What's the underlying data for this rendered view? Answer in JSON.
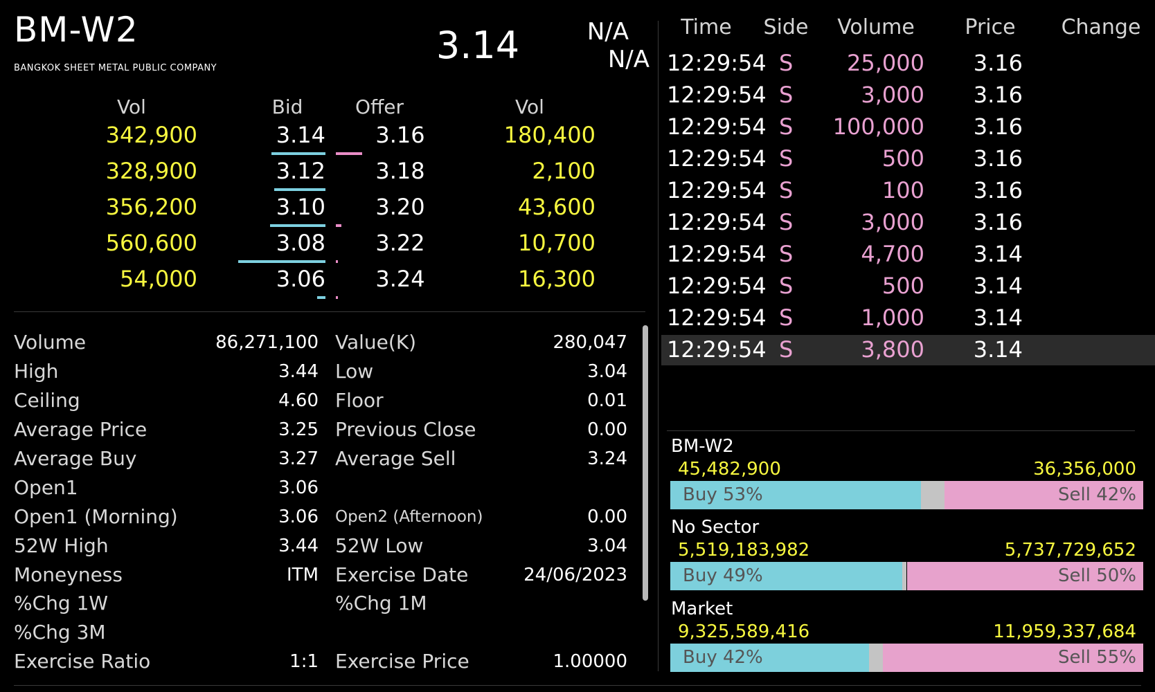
{
  "header": {
    "symbol": "BM-W2",
    "company": "BANGKOK SHEET METAL PUBLIC COMPANY",
    "last_price": "3.14",
    "change": "N/A",
    "percent_change": "N/A"
  },
  "order_book": {
    "headers": {
      "bid_vol": "Vol",
      "bid": "Bid",
      "offer": "Offer",
      "offer_vol": "Vol"
    },
    "rows": [
      {
        "bid_vol": "342,900",
        "bid": "3.14",
        "offer": "3.16",
        "offer_vol": "180,400"
      },
      {
        "bid_vol": "328,900",
        "bid": "3.12",
        "offer": "3.18",
        "offer_vol": "2,100"
      },
      {
        "bid_vol": "356,200",
        "bid": "3.10",
        "offer": "3.20",
        "offer_vol": "43,600"
      },
      {
        "bid_vol": "560,600",
        "bid": "3.08",
        "offer": "3.22",
        "offer_vol": "10,700"
      },
      {
        "bid_vol": "54,000",
        "bid": "3.06",
        "offer": "3.24",
        "offer_vol": "16,300"
      }
    ]
  },
  "stats": {
    "rows": [
      {
        "l1": "Volume",
        "v1": "86,271,100",
        "l2": "Value(K)",
        "v2": "280,047"
      },
      {
        "l1": "High",
        "v1": "3.44",
        "l2": "Low",
        "v2": "3.04"
      },
      {
        "l1": "Ceiling",
        "v1": "4.60",
        "l2": "Floor",
        "v2": "0.01"
      },
      {
        "l1": "Average Price",
        "v1": "3.25",
        "l2": "Previous Close",
        "v2": "0.00"
      },
      {
        "l1": "Average Buy",
        "v1": "3.27",
        "l2": "Average Sell",
        "v2": "3.24"
      },
      {
        "l1": "Open1",
        "v1": "3.06",
        "l2": "",
        "v2": ""
      },
      {
        "l1": "Open1 (Morning)",
        "v1": "3.06",
        "l2": "Open2 (Afternoon)",
        "v2": "0.00"
      },
      {
        "l1": "52W High",
        "v1": "3.44",
        "l2": "52W Low",
        "v2": "3.04"
      },
      {
        "l1": "Moneyness",
        "v1": "ITM",
        "l2": "Exercise Date",
        "v2": "24/06/2023"
      },
      {
        "l1": "%Chg 1W",
        "v1": "",
        "l2": "%Chg 1M",
        "v2": ""
      },
      {
        "l1": "%Chg 3M",
        "v1": "",
        "l2": "",
        "v2": ""
      },
      {
        "l1": "Exercise Ratio",
        "v1": "1:1",
        "l2": "Exercise Price",
        "v2": "1.00000"
      }
    ]
  },
  "trades": {
    "headers": {
      "time": "Time",
      "side": "Side",
      "volume": "Volume",
      "price": "Price",
      "change": "Change"
    },
    "rows": [
      {
        "time": "12:29:54",
        "side": "S",
        "volume": "25,000",
        "price": "3.16"
      },
      {
        "time": "12:29:54",
        "side": "S",
        "volume": "3,000",
        "price": "3.16"
      },
      {
        "time": "12:29:54",
        "side": "S",
        "volume": "100,000",
        "price": "3.16"
      },
      {
        "time": "12:29:54",
        "side": "S",
        "volume": "500",
        "price": "3.16"
      },
      {
        "time": "12:29:54",
        "side": "S",
        "volume": "100",
        "price": "3.16"
      },
      {
        "time": "12:29:54",
        "side": "S",
        "volume": "3,000",
        "price": "3.16"
      },
      {
        "time": "12:29:54",
        "side": "S",
        "volume": "4,700",
        "price": "3.14"
      },
      {
        "time": "12:29:54",
        "side": "S",
        "volume": "500",
        "price": "3.14"
      },
      {
        "time": "12:29:54",
        "side": "S",
        "volume": "1,000",
        "price": "3.14"
      },
      {
        "time": "12:29:54",
        "side": "S",
        "volume": "3,800",
        "price": "3.14"
      }
    ]
  },
  "buy_sell": [
    {
      "name": "BM-W2",
      "buy_value": "45,482,900",
      "sell_value": "36,356,000",
      "buy_label": "Buy 53%",
      "sell_label": "Sell 42%",
      "buy_pct": 53,
      "sell_pct": 42
    },
    {
      "name": "No Sector",
      "buy_value": "5,519,183,982",
      "sell_value": "5,737,729,652",
      "buy_label": "Buy 49%",
      "sell_label": "Sell 50%",
      "buy_pct": 49,
      "sell_pct": 50
    },
    {
      "name": "Market",
      "buy_value": "9,325,589,416",
      "sell_value": "11,959,337,684",
      "buy_label": "Buy 42%",
      "sell_label": "Sell 55%",
      "buy_pct": 42,
      "sell_pct": 55
    }
  ],
  "colors": {
    "volume": "#f7f73f",
    "sell_side": "#e9a1d1",
    "buy_bar": "#7dd0dc",
    "sell_bar": "#e7a2cc"
  }
}
